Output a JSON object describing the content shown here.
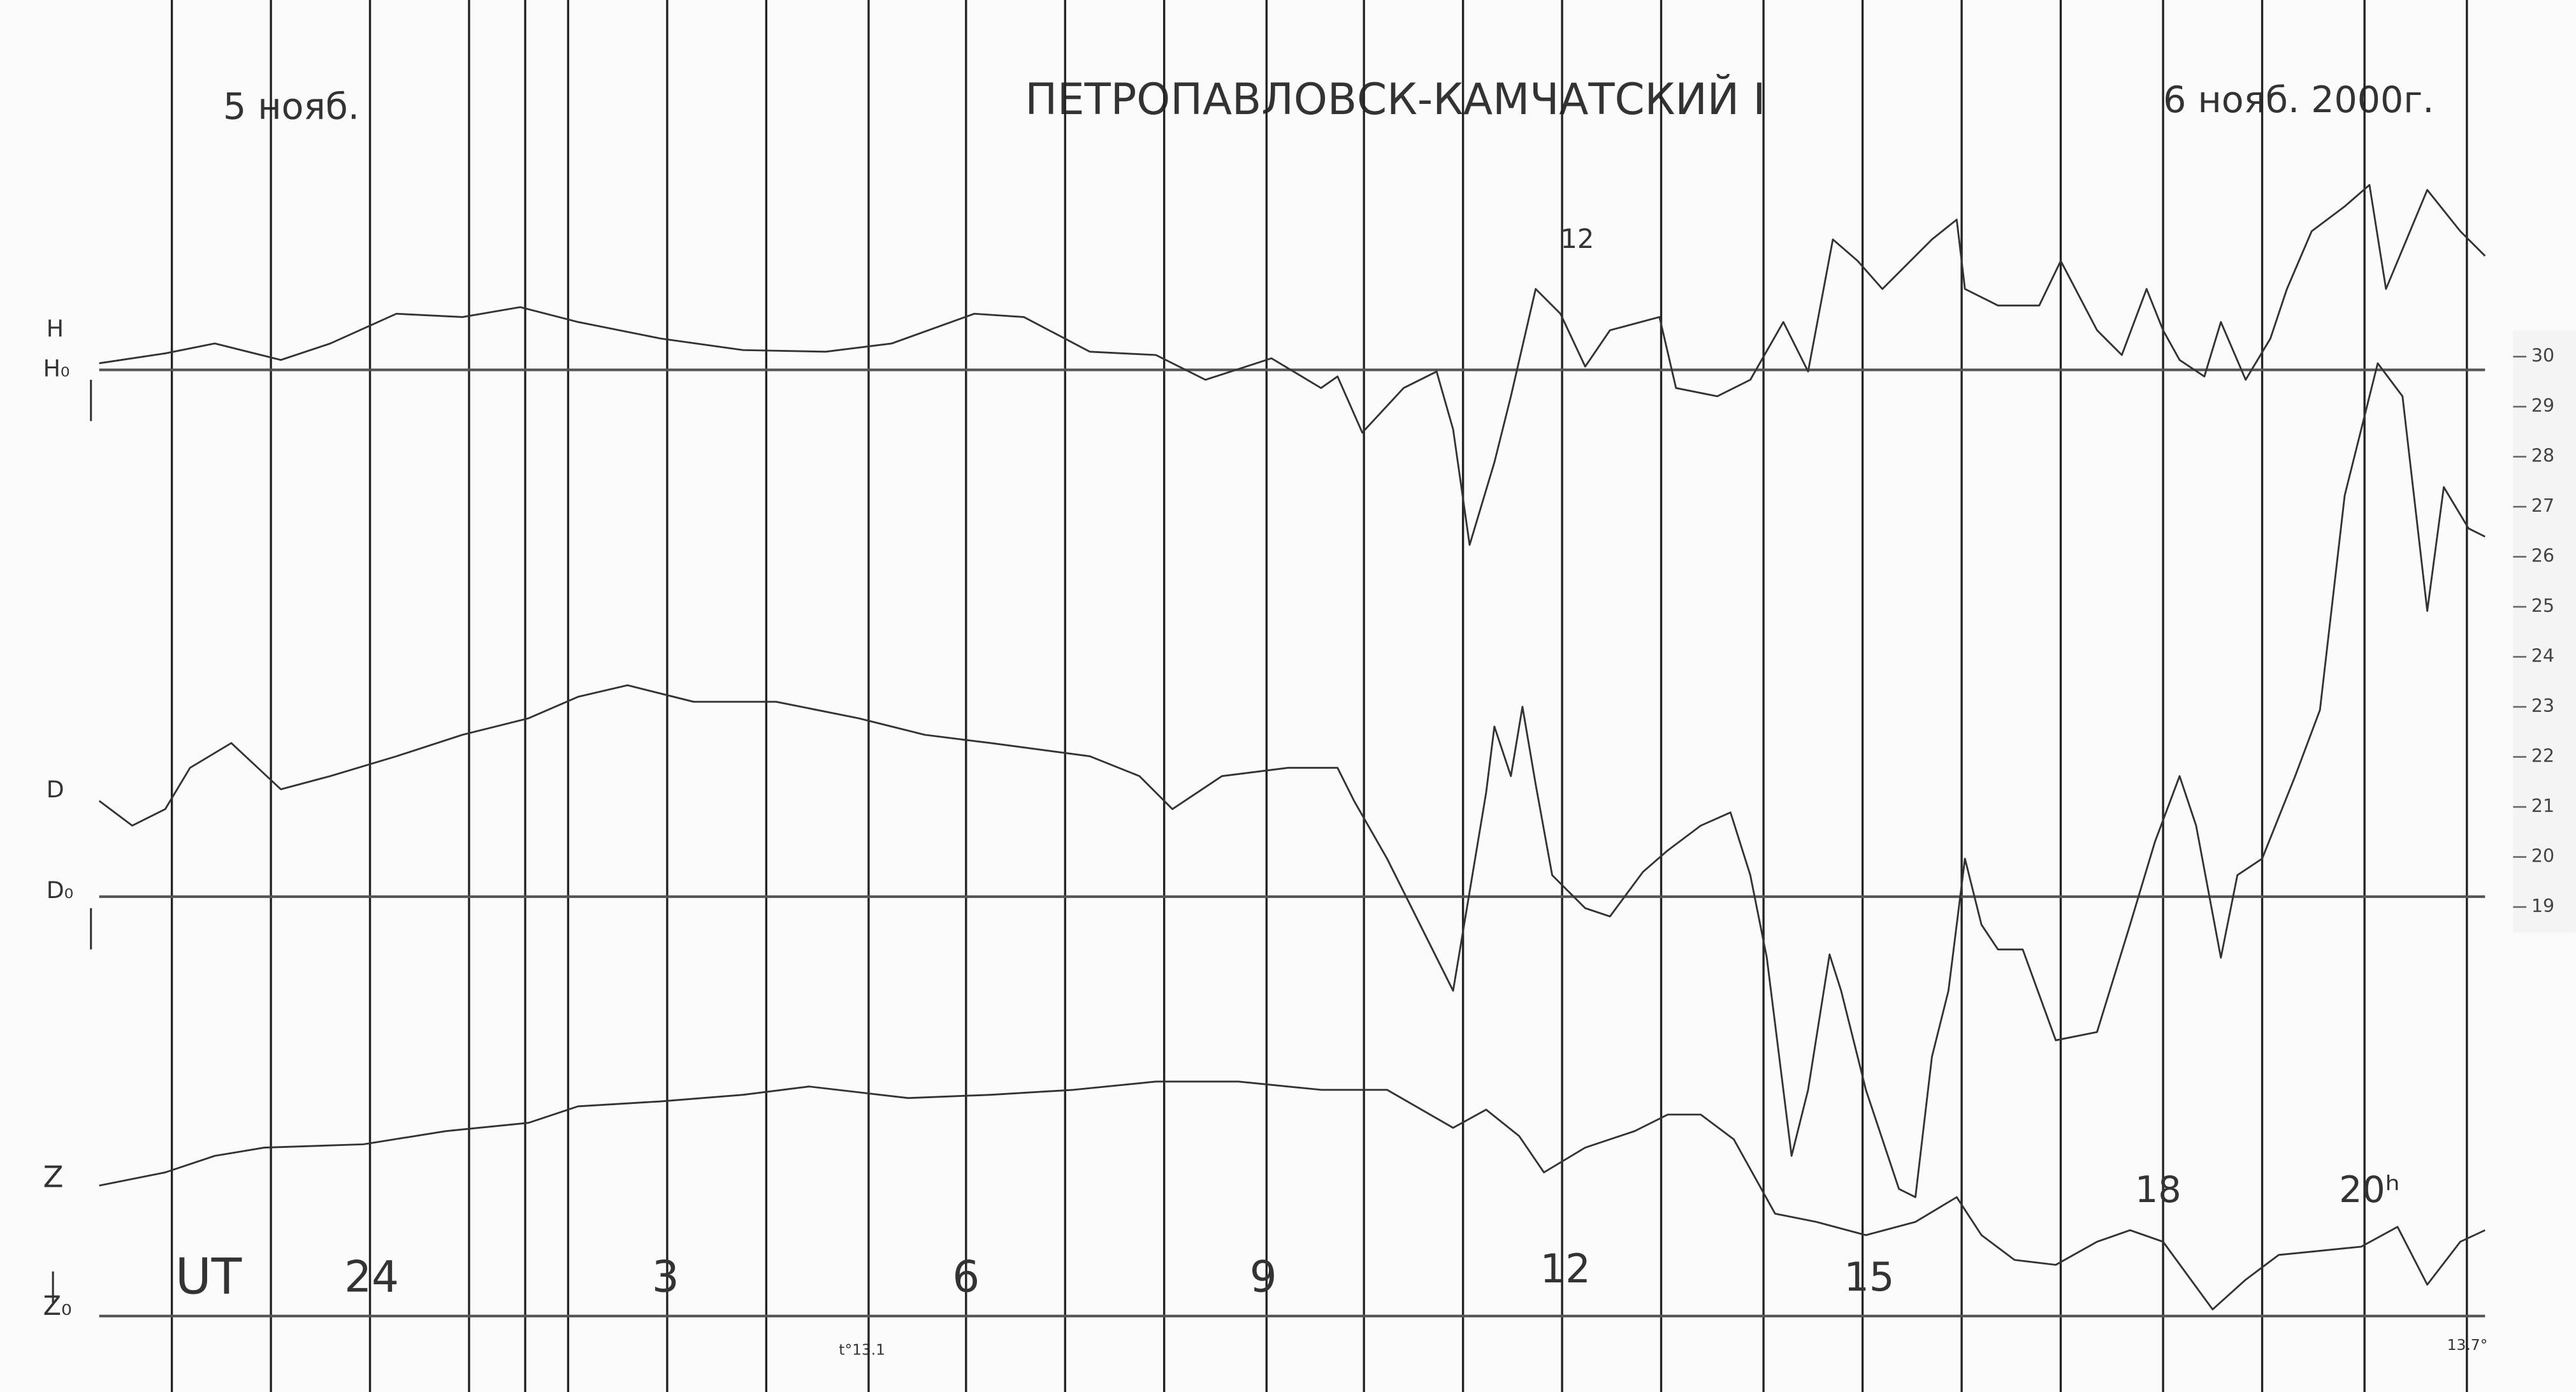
{
  "header": {
    "left_date": "5 нояб.",
    "title": "ПЕТРОПАВЛОВСК-КАМЧАТСКИЙ I",
    "right_date": "6 нояб. 2000г."
  },
  "labels": {
    "h": "H",
    "h0": "H₀",
    "d": "D",
    "d0": "D₀",
    "z": "Z",
    "z0": "Z₀"
  },
  "time_axis": {
    "unit": "UT",
    "hours": [
      "24",
      "3",
      "6",
      "9",
      "12",
      "15",
      "18",
      "20ʰ"
    ]
  },
  "temperature": {
    "start": "t°13.1",
    "end": "13.7°"
  },
  "annotation": "12",
  "scale": [
    "30",
    "29",
    "28",
    "27",
    "26",
    "25",
    "24",
    "23",
    "22",
    "21",
    "20",
    "19"
  ]
}
